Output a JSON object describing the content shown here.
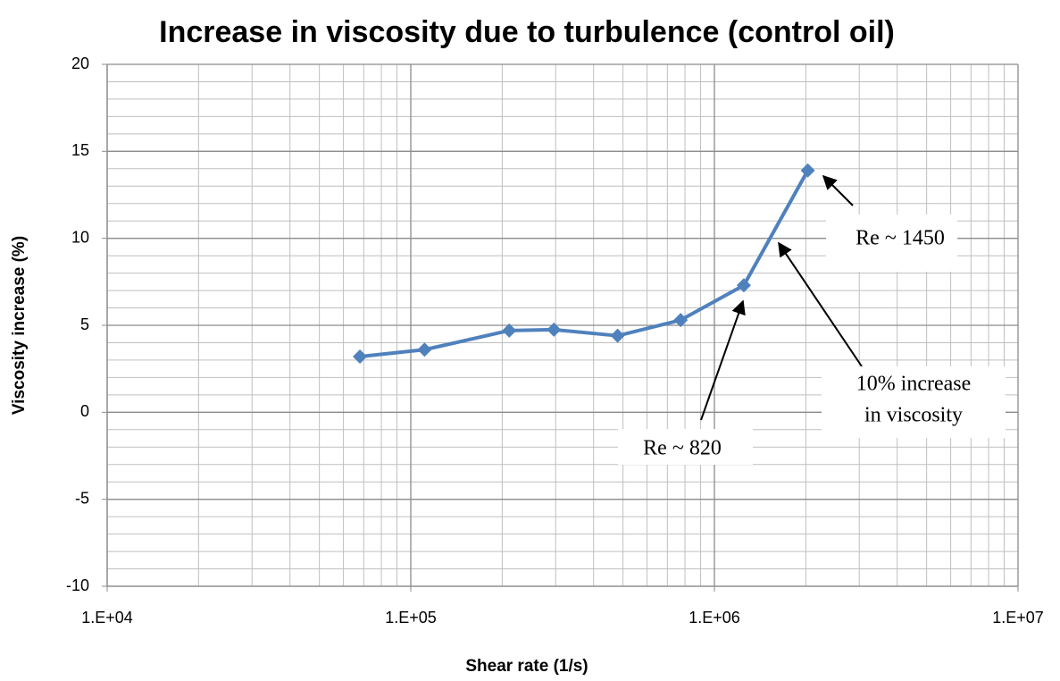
{
  "chart_data": {
    "type": "line",
    "title": "Increase in viscosity due to turbulence (control oil)",
    "xlabel": "Shear rate (1/s)",
    "ylabel": "Viscosity increase (%)",
    "x": [
      68000,
      111000,
      211000,
      296000,
      480000,
      774000,
      1250000,
      2030000
    ],
    "series": [
      {
        "name": "Viscosity increase",
        "color": "#4f81bd",
        "values": [
          3.2,
          3.6,
          4.7,
          4.75,
          4.4,
          5.3,
          7.3,
          13.9
        ]
      }
    ],
    "xscale": "log",
    "xlim": [
      10000,
      10000000
    ],
    "xticks": [
      {
        "value": 10000,
        "label": "1.E+04"
      },
      {
        "value": 100000,
        "label": "1.E+05"
      },
      {
        "value": 1000000,
        "label": "1.E+06"
      },
      {
        "value": 10000000,
        "label": "1.E+07"
      }
    ],
    "ylim": [
      -10,
      20
    ],
    "yticks": [
      -10,
      -5,
      0,
      5,
      10,
      15,
      20
    ],
    "grid": true,
    "annotations": [
      {
        "lines": [
          "Re  ~ 1450"
        ]
      },
      {
        "lines": [
          "10% increase",
          "in viscosity"
        ]
      },
      {
        "lines": [
          "Re ~ 820"
        ]
      }
    ]
  }
}
